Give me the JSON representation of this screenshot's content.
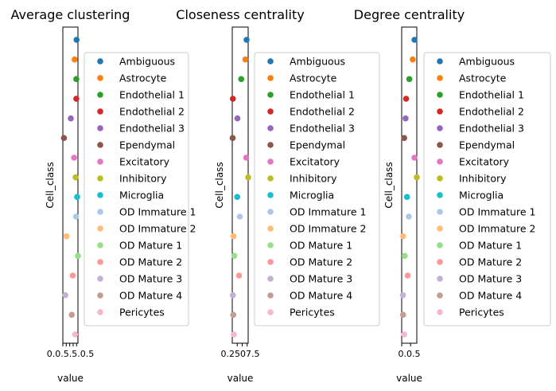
{
  "categories": [
    "Ambiguous",
    "Astrocyte",
    "Endothelial 1",
    "Endothelial 2",
    "Endothelial 3",
    "Ependymal",
    "Excitatory",
    "Inhibitory",
    "Microglia",
    "OD Immature 1",
    "OD Immature 2",
    "OD Mature 1",
    "OD Mature 2",
    "OD Mature 3",
    "OD Mature 4",
    "Pericytes"
  ],
  "colors": [
    "#1f77b4",
    "#ff7f0e",
    "#2ca02c",
    "#d62728",
    "#9467bd",
    "#8c564b",
    "#e377c2",
    "#bcbd22",
    "#17becf",
    "#aec7e8",
    "#ffbb78",
    "#98df8a",
    "#ff9896",
    "#c5b0d5",
    "#c49c94",
    "#f7b6d2"
  ],
  "chart_data": [
    {
      "type": "scatter",
      "title": "Average clustering",
      "xlabel": "value",
      "ylabel": "Cell_class",
      "xlim": [
        0.0,
        1.1
      ],
      "xticks": [
        0.0,
        0.25,
        0.5,
        0.75,
        1.0
      ],
      "xtick_labels": [
        "0.0",
        "0.25",
        "0.5",
        "0.75",
        "1.0"
      ],
      "xtick_text": "0.0.5.5.0.5",
      "values": [
        1.0,
        0.86,
        0.98,
        0.98,
        0.58,
        0.08,
        0.82,
        0.93,
        1.04,
        0.96,
        0.27,
        1.1,
        0.72,
        0.18,
        0.65,
        0.89
      ],
      "legend": "right"
    },
    {
      "type": "scatter",
      "title": "Closeness centrality",
      "xlabel": "value",
      "ylabel": "Cell_class",
      "xlim": [
        0.0,
        0.8
      ],
      "xticks": [
        0.25,
        0.5,
        0.75
      ],
      "xtick_labels": [
        "0.25",
        "0.5",
        "0.75"
      ],
      "xtick_text": "0.2507.5",
      "values": [
        0.72,
        0.66,
        0.45,
        0.03,
        0.26,
        0.02,
        0.7,
        0.8,
        0.25,
        0.38,
        0.06,
        0.1,
        0.34,
        0.03,
        0.05,
        0.08
      ],
      "legend": "right"
    },
    {
      "type": "scatter",
      "title": "Degree centrality",
      "xlabel": "value",
      "ylabel": "Cell_class",
      "xlim": [
        0.0,
        0.85
      ],
      "xticks": [
        0.0,
        0.5
      ],
      "xtick_labels": [
        "0.0",
        "0.5"
      ],
      "xtick_text": "0.0.5",
      "values": [
        0.72,
        0.62,
        0.43,
        0.25,
        0.22,
        0.14,
        0.72,
        0.85,
        0.3,
        0.4,
        0.08,
        0.17,
        0.34,
        0.07,
        0.08,
        0.14
      ],
      "legend": "right"
    }
  ]
}
